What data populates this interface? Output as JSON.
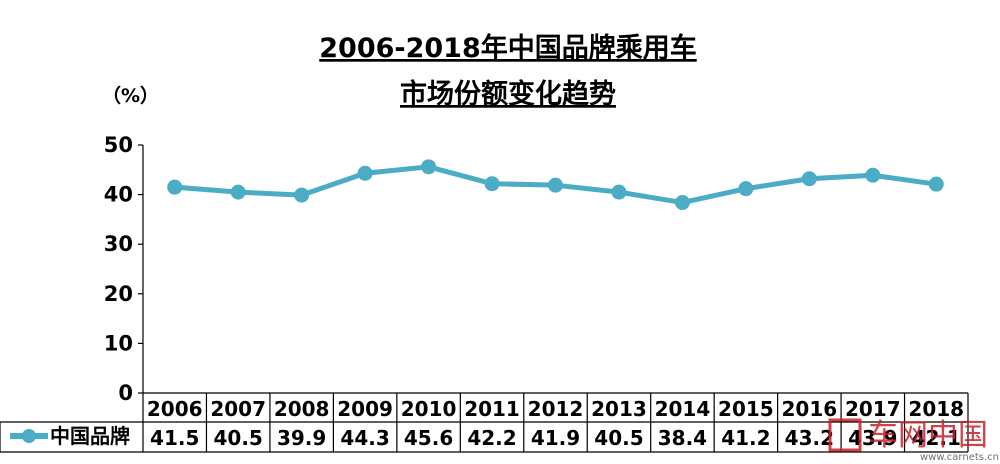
{
  "chart_data": {
    "type": "line",
    "title_line1": "2006-2018年中国品牌乘用车",
    "title_line2": "市场份额变化趋势",
    "unit_label": "（%）",
    "x": [
      "2006",
      "2007",
      "2008",
      "2009",
      "2010",
      "2011",
      "2012",
      "2013",
      "2014",
      "2015",
      "2016",
      "2017",
      "2018"
    ],
    "series": [
      {
        "name": "中国品牌",
        "values": [
          41.5,
          40.5,
          39.9,
          44.3,
          45.6,
          42.2,
          41.9,
          40.5,
          38.4,
          41.2,
          43.2,
          43.9,
          42.1
        ]
      }
    ],
    "ylim": [
      0,
      50
    ],
    "yticks": [
      "0",
      "10",
      "20",
      "30",
      "40",
      "50"
    ],
    "grid": false,
    "legend": "data-table-left",
    "series_color": "#4bacc6"
  },
  "watermark": {
    "text": "车网中国",
    "url": "www.carnets.cn"
  }
}
